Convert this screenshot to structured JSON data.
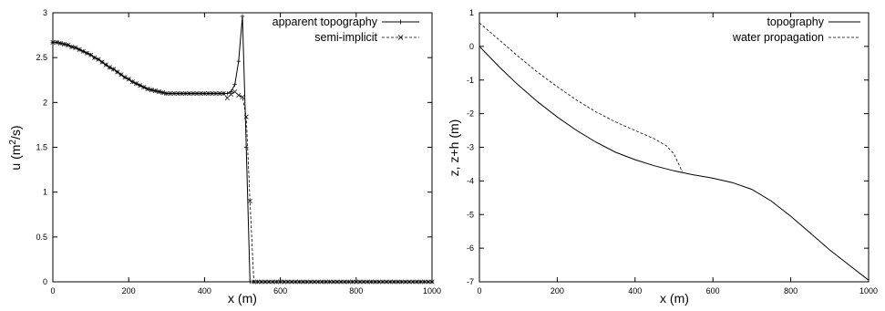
{
  "chart_data": [
    {
      "type": "line",
      "xlabel": "x (m)",
      "ylabel_main": "u (m",
      "ylabel_sup": "2",
      "ylabel_tail": "/s)",
      "xlim": [
        0,
        1000
      ],
      "ylim": [
        0,
        3
      ],
      "xticks": [
        0,
        200,
        400,
        600,
        800,
        1000
      ],
      "yticks": [
        0,
        0.5,
        1,
        1.5,
        2,
        2.5,
        3
      ],
      "ytick_labels": [
        "0",
        "0.5",
        "1",
        "1.5",
        "2",
        "2.5",
        "3"
      ],
      "legend_position": "top-right",
      "series": [
        {
          "name": "apparent topography",
          "style": "solid",
          "marker": "+",
          "x": [
            0,
            10,
            20,
            30,
            40,
            50,
            60,
            70,
            80,
            90,
            100,
            110,
            120,
            130,
            140,
            150,
            160,
            170,
            180,
            190,
            200,
            210,
            220,
            230,
            240,
            250,
            260,
            270,
            280,
            290,
            300,
            310,
            320,
            330,
            340,
            350,
            360,
            370,
            380,
            390,
            400,
            410,
            420,
            430,
            440,
            450,
            460,
            470,
            480,
            490,
            500,
            510,
            520,
            530,
            540,
            550,
            560,
            570,
            580,
            590,
            600,
            610,
            620,
            630,
            640,
            650,
            660,
            670,
            680,
            690,
            700,
            710,
            720,
            730,
            740,
            750,
            760,
            770,
            780,
            790,
            800,
            810,
            820,
            830,
            840,
            850,
            860,
            870,
            880,
            890,
            900,
            910,
            920,
            930,
            940,
            950,
            960,
            970,
            980,
            990,
            1000
          ],
          "y": [
            2.67,
            2.67,
            2.66,
            2.65,
            2.64,
            2.62,
            2.61,
            2.59,
            2.57,
            2.55,
            2.53,
            2.5,
            2.48,
            2.45,
            2.42,
            2.39,
            2.37,
            2.34,
            2.31,
            2.28,
            2.26,
            2.23,
            2.21,
            2.19,
            2.17,
            2.15,
            2.14,
            2.13,
            2.12,
            2.11,
            2.1,
            2.1,
            2.1,
            2.1,
            2.1,
            2.1,
            2.1,
            2.1,
            2.1,
            2.1,
            2.1,
            2.1,
            2.1,
            2.1,
            2.1,
            2.1,
            2.1,
            2.12,
            2.2,
            2.46,
            2.96,
            1.5,
            0.0,
            0,
            0,
            0,
            0,
            0,
            0,
            0,
            0,
            0,
            0,
            0,
            0,
            0,
            0,
            0,
            0,
            0,
            0,
            0,
            0,
            0,
            0,
            0,
            0,
            0,
            0,
            0,
            0,
            0,
            0,
            0,
            0,
            0,
            0,
            0,
            0,
            0,
            0,
            0,
            0,
            0,
            0,
            0,
            0,
            0,
            0,
            0,
            0
          ]
        },
        {
          "name": "semi-implicit",
          "style": "dashed",
          "marker": "x",
          "x": [
            0,
            10,
            20,
            30,
            40,
            50,
            60,
            70,
            80,
            90,
            100,
            110,
            120,
            130,
            140,
            150,
            160,
            170,
            180,
            190,
            200,
            210,
            220,
            230,
            240,
            250,
            260,
            270,
            280,
            290,
            300,
            310,
            320,
            330,
            340,
            350,
            360,
            370,
            380,
            390,
            400,
            410,
            420,
            430,
            440,
            450,
            460,
            470,
            480,
            490,
            500,
            510,
            520,
            530,
            540,
            550,
            560,
            570,
            580,
            590,
            600,
            610,
            620,
            630,
            640,
            650,
            660,
            670,
            680,
            690,
            700,
            710,
            720,
            730,
            740,
            750,
            760,
            770,
            780,
            790,
            800,
            810,
            820,
            830,
            840,
            850,
            860,
            870,
            880,
            890,
            900,
            910,
            920,
            930,
            940,
            950,
            960,
            970,
            980,
            990,
            1000
          ],
          "y": [
            2.67,
            2.67,
            2.66,
            2.65,
            2.64,
            2.62,
            2.61,
            2.59,
            2.57,
            2.55,
            2.53,
            2.5,
            2.48,
            2.45,
            2.42,
            2.39,
            2.37,
            2.34,
            2.31,
            2.28,
            2.26,
            2.23,
            2.21,
            2.19,
            2.17,
            2.15,
            2.14,
            2.13,
            2.12,
            2.11,
            2.1,
            2.1,
            2.1,
            2.1,
            2.1,
            2.1,
            2.1,
            2.1,
            2.1,
            2.1,
            2.1,
            2.1,
            2.1,
            2.1,
            2.1,
            2.1,
            2.05,
            2.09,
            2.12,
            2.08,
            2.06,
            1.84,
            0.9,
            0,
            0,
            0,
            0,
            0,
            0,
            0,
            0,
            0,
            0,
            0,
            0,
            0,
            0,
            0,
            0,
            0,
            0,
            0,
            0,
            0,
            0,
            0,
            0,
            0,
            0,
            0,
            0,
            0,
            0,
            0,
            0,
            0,
            0,
            0,
            0,
            0,
            0,
            0,
            0,
            0,
            0,
            0,
            0,
            0,
            0,
            0,
            0
          ]
        }
      ]
    },
    {
      "type": "line",
      "xlabel": "x (m)",
      "ylabel": "z, z+h (m)",
      "xlim": [
        0,
        1000
      ],
      "ylim": [
        -7,
        1
      ],
      "xticks": [
        0,
        200,
        400,
        600,
        800,
        1000
      ],
      "yticks": [
        1,
        0,
        -1,
        -2,
        -3,
        -4,
        -5,
        -6,
        -7
      ],
      "legend_position": "top-right",
      "series": [
        {
          "name": "topography",
          "style": "solid",
          "x": [
            0,
            50,
            100,
            150,
            200,
            250,
            300,
            350,
            400,
            450,
            500,
            550,
            600,
            650,
            700,
            750,
            800,
            850,
            900,
            950,
            1000
          ],
          "y": [
            0,
            -0.6,
            -1.15,
            -1.65,
            -2.1,
            -2.5,
            -2.85,
            -3.15,
            -3.37,
            -3.55,
            -3.7,
            -3.82,
            -3.92,
            -4.05,
            -4.25,
            -4.6,
            -5.05,
            -5.55,
            -6.05,
            -6.5,
            -6.95
          ]
        },
        {
          "name": "water propagation",
          "style": "dashed",
          "x": [
            0,
            50,
            100,
            150,
            200,
            250,
            300,
            350,
            400,
            450,
            480,
            500,
            510,
            520,
            522
          ],
          "y": [
            0.7,
            0.2,
            -0.3,
            -0.77,
            -1.2,
            -1.6,
            -1.95,
            -2.25,
            -2.5,
            -2.75,
            -2.95,
            -3.2,
            -3.45,
            -3.7,
            -3.72
          ]
        }
      ]
    }
  ]
}
